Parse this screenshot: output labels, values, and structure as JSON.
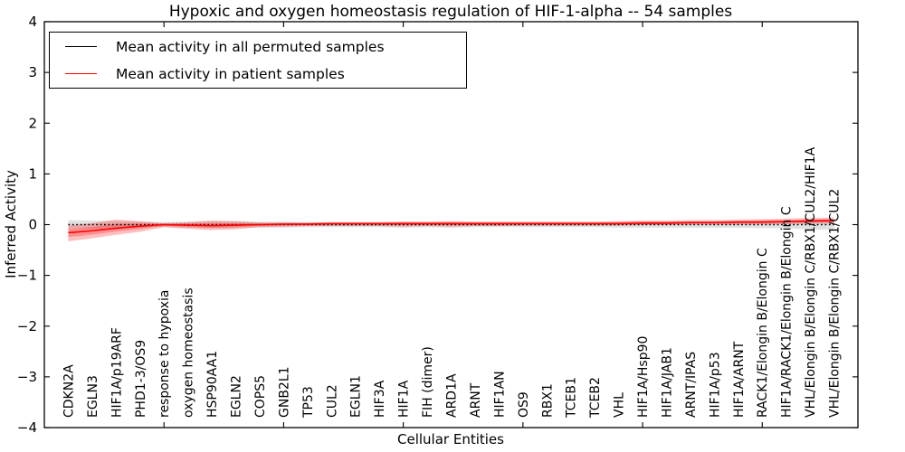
{
  "colors": {
    "permuted_line": "#000000",
    "patient_line": "#ff0000",
    "permuted_band": "#c8c8c8",
    "patient_band": "#ff0000",
    "frame": "#000000",
    "background": "#ffffff"
  },
  "legend": [
    {
      "label": "Mean activity in all permuted samples",
      "color": "#000000",
      "style": "solid"
    },
    {
      "label": "Mean activity in patient samples",
      "color": "#ff0000",
      "style": "solid"
    }
  ],
  "chart_data": {
    "type": "line",
    "title": "Hypoxic and oxygen homeostasis regulation of HIF-1-alpha -- 54 samples",
    "xlabel": "Cellular Entities",
    "ylabel": "Inferred Activity",
    "ylim": [
      -4,
      4
    ],
    "yticks": [
      -4,
      -3,
      -2,
      -1,
      0,
      1,
      2,
      3,
      4
    ],
    "x_axis_units_range": [
      0,
      34
    ],
    "xtick_units": [
      5,
      10,
      15,
      20,
      25,
      30
    ],
    "grid": false,
    "legend_position": "upper left",
    "tick_direction": "in",
    "categories": [
      "CDKN2A",
      "EGLN3",
      "HIF1A/p19ARF",
      "PHD1-3/OS9",
      "response to hypoxia",
      "oxygen homeostasis",
      "HSP90AA1",
      "EGLN2",
      "COPS5",
      "GNB2L1",
      "TP53",
      "CUL2",
      "EGLN1",
      "HIF3A",
      "HIF1A",
      "FIH (dimer)",
      "ARD1A",
      "ARNT",
      "HIF1AN",
      "OS9",
      "RBX1",
      "TCEB1",
      "TCEB2",
      "VHL",
      "HIF1A/Hsp90",
      "HIF1A/JAB1",
      "ARNT/IPAS",
      "HIF1A/p53",
      "HIF1A/ARNT",
      "RACK1/Elongin B/Elongin C",
      "HIF1A/RACK1/Elongin B/Elongin C",
      "VHL/Elongin B/Elongin C/RBX1/CUL2/HIF1A",
      "VHL/Elongin B/Elongin C/RBX1/CUL2"
    ],
    "series": [
      {
        "name": "Mean activity in all permuted samples",
        "color": "#000000",
        "line_style": "dotted",
        "values": [
          0,
          0,
          0,
          0,
          0,
          0,
          0,
          0,
          0,
          0,
          0,
          0,
          0,
          0,
          0,
          0,
          0,
          0,
          0,
          0,
          0,
          0,
          0,
          0,
          0,
          0,
          0,
          0,
          0,
          0,
          0,
          0,
          0
        ],
        "band_low": [
          -0.09,
          -0.08,
          -0.07,
          -0.06,
          -0.05,
          -0.06,
          -0.07,
          -0.07,
          -0.06,
          -0.06,
          -0.05,
          -0.05,
          -0.05,
          -0.05,
          -0.06,
          -0.05,
          -0.06,
          -0.05,
          -0.05,
          -0.05,
          -0.05,
          -0.05,
          -0.05,
          -0.06,
          -0.06,
          -0.06,
          -0.06,
          -0.06,
          -0.06,
          -0.07,
          -0.07,
          -0.1,
          -0.1
        ],
        "band_high": [
          0.09,
          0.08,
          0.07,
          0.06,
          0.05,
          0.06,
          0.07,
          0.07,
          0.06,
          0.06,
          0.05,
          0.05,
          0.05,
          0.05,
          0.06,
          0.05,
          0.06,
          0.05,
          0.05,
          0.05,
          0.05,
          0.05,
          0.05,
          0.06,
          0.06,
          0.06,
          0.06,
          0.06,
          0.06,
          0.07,
          0.07,
          0.1,
          0.1
        ],
        "band_color": "#c8c8c8"
      },
      {
        "name": "Mean activity in patient samples",
        "color": "#ff0000",
        "line_style": "solid",
        "values": [
          -0.16,
          -0.12,
          -0.07,
          -0.03,
          0.0,
          -0.01,
          -0.02,
          -0.01,
          0.0,
          0.01,
          0.01,
          0.02,
          0.02,
          0.02,
          0.02,
          0.02,
          0.02,
          0.02,
          0.02,
          0.02,
          0.02,
          0.02,
          0.02,
          0.02,
          0.03,
          0.03,
          0.04,
          0.04,
          0.05,
          0.05,
          0.06,
          0.07,
          0.08
        ],
        "band_low": [
          -0.33,
          -0.27,
          -0.2,
          -0.14,
          -0.05,
          -0.08,
          -0.11,
          -0.09,
          -0.05,
          -0.04,
          -0.03,
          -0.03,
          -0.03,
          -0.03,
          -0.04,
          -0.03,
          -0.04,
          -0.03,
          -0.03,
          -0.02,
          -0.02,
          -0.02,
          -0.02,
          -0.02,
          -0.01,
          -0.01,
          0.0,
          0.0,
          0.0,
          0.01,
          0.01,
          0.02,
          0.02
        ],
        "band_high": [
          -0.02,
          0.03,
          0.1,
          0.07,
          0.03,
          0.05,
          0.08,
          0.07,
          0.04,
          0.04,
          0.04,
          0.05,
          0.05,
          0.05,
          0.06,
          0.06,
          0.07,
          0.06,
          0.06,
          0.06,
          0.06,
          0.06,
          0.06,
          0.07,
          0.08,
          0.08,
          0.09,
          0.09,
          0.1,
          0.11,
          0.12,
          0.13,
          0.14
        ],
        "band_color": "#ff0000"
      }
    ]
  }
}
